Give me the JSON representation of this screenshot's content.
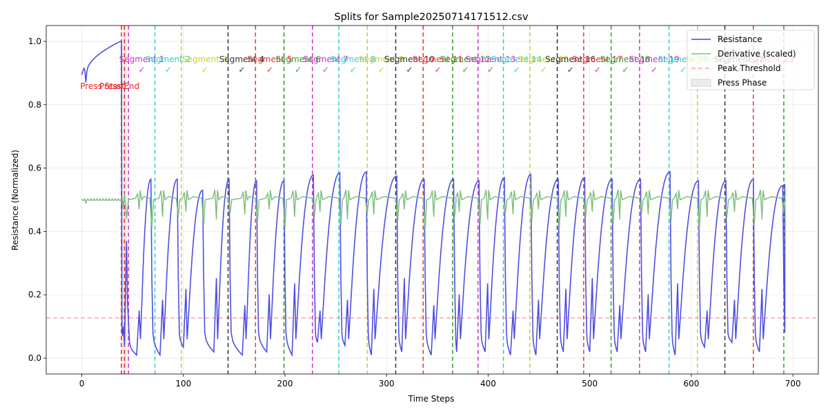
{
  "chart_data": {
    "type": "line",
    "title": "Splits for Sample20250714171512.csv",
    "xlabel": "Time Steps",
    "ylabel": "Resistance (Normalized)",
    "xlim": [
      -35,
      725
    ],
    "ylim": [
      -0.05,
      1.05
    ],
    "xticks": [
      0,
      100,
      200,
      300,
      400,
      500,
      600,
      700
    ],
    "yticks": [
      0.0,
      0.2,
      0.4,
      0.6,
      0.8,
      1.0
    ],
    "grid": true,
    "legend_position": "top-right",
    "series": [
      {
        "name": "Resistance",
        "color": "#4444dd"
      },
      {
        "name": "Derivative (scaled)",
        "color": "#7fbf7f"
      }
    ],
    "press_phase": {
      "start": 39,
      "end": 45,
      "start_label": "Press Start",
      "end_label": "Press End"
    },
    "peak_threshold": {
      "name": "Peak Threshold",
      "value": 0.127,
      "color": "#ff7f7f"
    },
    "press_phase_legend": "Press Phase",
    "checkmark": "✓",
    "cycle_minima": [
      {
        "x": 42,
        "y": 0.04
      },
      {
        "x": 54,
        "y": 0.01
      },
      {
        "x": 77,
        "y": 0.01
      },
      {
        "x": 100,
        "y": 0.035
      },
      {
        "x": 130,
        "y": 0.02
      },
      {
        "x": 158,
        "y": 0.01
      },
      {
        "x": 182,
        "y": 0.02
      },
      {
        "x": 207,
        "y": 0.01
      },
      {
        "x": 232,
        "y": 0.05
      },
      {
        "x": 259,
        "y": 0.04
      },
      {
        "x": 285,
        "y": 0.01
      },
      {
        "x": 315,
        "y": 0.02
      },
      {
        "x": 344,
        "y": 0.01
      },
      {
        "x": 369,
        "y": 0.02
      },
      {
        "x": 397,
        "y": 0.02
      },
      {
        "x": 422,
        "y": 0.01
      },
      {
        "x": 447,
        "y": 0.01
      },
      {
        "x": 474,
        "y": 0.02
      },
      {
        "x": 500,
        "y": 0.02
      },
      {
        "x": 527,
        "y": 0.02
      },
      {
        "x": 555,
        "y": 0.02
      },
      {
        "x": 584,
        "y": 0.01
      },
      {
        "x": 613,
        "y": 0.035
      },
      {
        "x": 640,
        "y": 0.05
      },
      {
        "x": 667,
        "y": 0.02
      }
    ],
    "cycle_peaks": [
      {
        "x": 68,
        "y": 0.565
      },
      {
        "x": 94,
        "y": 0.565
      },
      {
        "x": 119,
        "y": 0.53
      },
      {
        "x": 145,
        "y": 0.565
      },
      {
        "x": 172,
        "y": 0.56
      },
      {
        "x": 199,
        "y": 0.56
      },
      {
        "x": 228,
        "y": 0.578
      },
      {
        "x": 254,
        "y": 0.585
      },
      {
        "x": 280,
        "y": 0.588
      },
      {
        "x": 310,
        "y": 0.575
      },
      {
        "x": 337,
        "y": 0.565
      },
      {
        "x": 366,
        "y": 0.565
      },
      {
        "x": 391,
        "y": 0.56
      },
      {
        "x": 416,
        "y": 0.57
      },
      {
        "x": 442,
        "y": 0.58
      },
      {
        "x": 469,
        "y": 0.565
      },
      {
        "x": 495,
        "y": 0.57
      },
      {
        "x": 522,
        "y": 0.565
      },
      {
        "x": 550,
        "y": 0.565
      },
      {
        "x": 579,
        "y": 0.588
      },
      {
        "x": 607,
        "y": 0.56
      },
      {
        "x": 634,
        "y": 0.56
      },
      {
        "x": 661,
        "y": 0.565
      },
      {
        "x": 690,
        "y": 0.545
      }
    ],
    "segments": [
      {
        "label": "Segment 1",
        "x": 46,
        "color": "#cc33cc"
      },
      {
        "label": "Segment 2",
        "x": 72,
        "color": "#33cccc"
      },
      {
        "label": "Segment 3",
        "x": 98,
        "color": "#cccc33"
      },
      {
        "label": "Segment 4",
        "x": 144,
        "color": "#333333"
      },
      {
        "label": "Segment 5",
        "x": 171,
        "color": "#ee3333"
      },
      {
        "label": "Segment 6",
        "x": 199,
        "color": "#339933"
      },
      {
        "label": "Segment 7",
        "x": 227,
        "color": "#cc33cc"
      },
      {
        "label": "Segment 8",
        "x": 253,
        "color": "#33cccc"
      },
      {
        "label": "Segment 9",
        "x": 281,
        "color": "#cccc33"
      },
      {
        "label": "Segment 10",
        "x": 309,
        "color": "#333333"
      },
      {
        "label": "Segment 11",
        "x": 336,
        "color": "#ee3333"
      },
      {
        "label": "Segment 12",
        "x": 365,
        "color": "#339933"
      },
      {
        "label": "Segment 13",
        "x": 390,
        "color": "#cc33cc"
      },
      {
        "label": "Segment 14",
        "x": 415,
        "color": "#33cccc"
      },
      {
        "label": "Segment 15",
        "x": 441,
        "color": "#cccc33"
      },
      {
        "label": "Segment 16",
        "x": 468,
        "color": "#333333"
      },
      {
        "label": "Segment 17",
        "x": 494,
        "color": "#ee3333"
      },
      {
        "label": "Segment 18",
        "x": 521,
        "color": "#339933"
      },
      {
        "label": "Segment 19",
        "x": 549,
        "color": "#cc33cc"
      },
      {
        "label": "Segment 20",
        "x": 578,
        "color": "#33cccc"
      },
      {
        "label": "Segment 21",
        "x": 606,
        "color": "#cccc33"
      },
      {
        "label": "Segment 22",
        "x": 633,
        "color": "#333333"
      },
      {
        "label": "Segment 23",
        "x": 661,
        "color": "#ee3333"
      },
      {
        "label": "",
        "x": 691,
        "color": "#339933"
      }
    ]
  }
}
